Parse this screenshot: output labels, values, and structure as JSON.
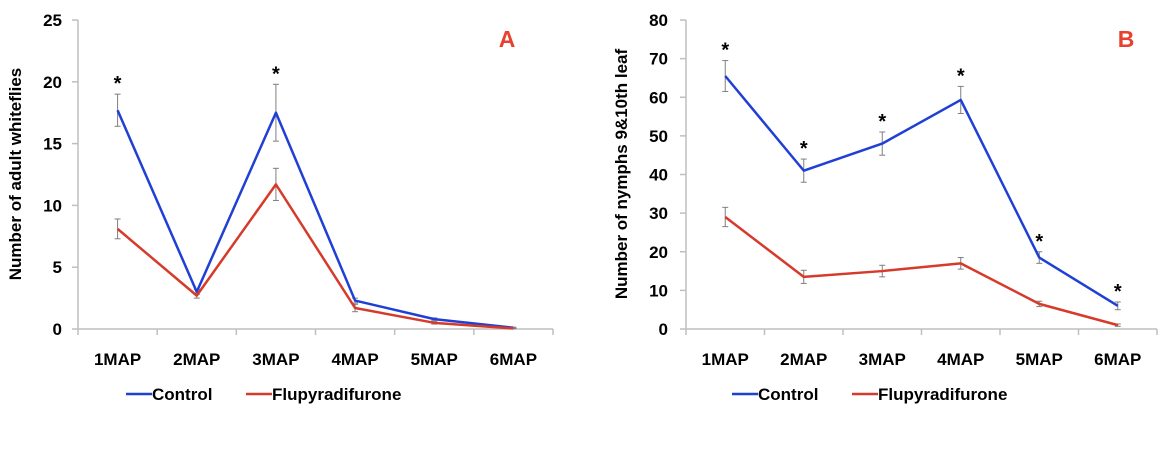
{
  "chart_data": [
    {
      "type": "line",
      "panel_label": "A",
      "ylabel": "Number of adult whiteflies",
      "categories": [
        "1MAP",
        "2MAP",
        "3MAP",
        "4MAP",
        "5MAP",
        "6MAP"
      ],
      "ylim": [
        0,
        25
      ],
      "yticks": [
        0,
        5,
        10,
        15,
        20,
        25
      ],
      "series": [
        {
          "name": "Control",
          "color": "#1f3fd6",
          "values": [
            17.7,
            3.0,
            17.5,
            2.3,
            0.8,
            0.1
          ],
          "err": [
            1.3,
            0.2,
            2.3,
            0.2,
            0.1,
            0.05
          ]
        },
        {
          "name": "Flupyradifurone",
          "color": "#d63a2a",
          "values": [
            8.1,
            2.7,
            11.7,
            1.7,
            0.5,
            0.05
          ],
          "err": [
            0.8,
            0.2,
            1.3,
            0.3,
            0.1,
            0.02
          ]
        }
      ],
      "significance": [
        "*",
        "",
        "*",
        "",
        "",
        ""
      ],
      "legend": "bottom"
    },
    {
      "type": "line",
      "panel_label": "B",
      "ylabel": "Number of nymphs 9&10th leaf",
      "categories": [
        "1MAP",
        "2MAP",
        "3MAP",
        "4MAP",
        "5MAP",
        "6MAP"
      ],
      "ylim": [
        0,
        80
      ],
      "yticks": [
        0,
        10,
        20,
        30,
        40,
        50,
        60,
        70,
        80
      ],
      "series": [
        {
          "name": "Control",
          "color": "#1f3fd6",
          "values": [
            65.5,
            41.0,
            48.0,
            59.3,
            18.5,
            6.0
          ],
          "err": [
            4.0,
            3.0,
            3.0,
            3.5,
            1.5,
            1.0
          ]
        },
        {
          "name": "Flupyradifurone",
          "color": "#d63a2a",
          "values": [
            29.0,
            13.5,
            15.0,
            17.0,
            6.5,
            1.0
          ],
          "err": [
            2.5,
            1.7,
            1.5,
            1.5,
            0.7,
            0.3
          ]
        }
      ],
      "significance": [
        "*",
        "*",
        "*",
        "*",
        "*",
        "*"
      ],
      "legend": "bottom"
    }
  ],
  "colors": {
    "axis": "#bfbfbf",
    "panel_label": "#e8412f",
    "errorbar": "#7f7f7f"
  }
}
